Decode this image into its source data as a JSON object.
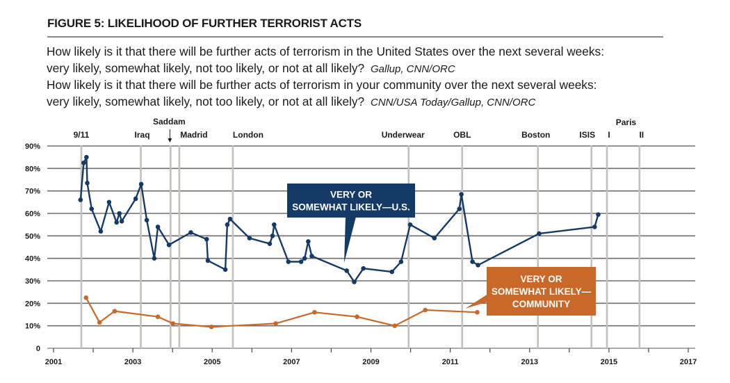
{
  "figure": {
    "title": "FIGURE 5: LIKELIHOOD OF FURTHER TERRORIST ACTS",
    "questions": [
      {
        "line1": "How likely is it that there will be further acts of terrorism in the United States over the next several weeks:",
        "line2": "very likely, somewhat likely, not too likely, or not at all likely?",
        "source": "Gallup, CNN/ORC"
      },
      {
        "line1": "How likely is it that there will be further acts of terrorism in your community over the next several weeks:",
        "line2": "very likely, somewhat likely, not too likely, or not at all likely?",
        "source": "CNN/USA Today/Gallup, CNN/ORC"
      }
    ]
  },
  "chart_data": {
    "type": "line",
    "title": "FIGURE 5: LIKELIHOOD OF FURTHER TERRORIST ACTS",
    "xlabel": "",
    "ylabel": "",
    "xlim": [
      2001,
      2017
    ],
    "ylim": [
      0,
      90
    ],
    "x_ticks": [
      2001,
      2002,
      2003,
      2004,
      2005,
      2006,
      2007,
      2008,
      2009,
      2010,
      2011,
      2012,
      2013,
      2014,
      2015,
      2016,
      2017
    ],
    "x_tick_labels": [
      "2001",
      "",
      "2003",
      "",
      "2005",
      "",
      "2007",
      "",
      "2009",
      "",
      "2011",
      "",
      "2013",
      "",
      "2015",
      "",
      "2017"
    ],
    "y_ticks": [
      0,
      10,
      20,
      30,
      40,
      50,
      60,
      70,
      80,
      90
    ],
    "y_tick_labels": [
      "0",
      "10%",
      "20%",
      "30%",
      "40%",
      "50%",
      "60%",
      "70%",
      "80%",
      "90%"
    ],
    "grid": "horizontal",
    "events": [
      {
        "label": "9/11",
        "x": 2001.7
      },
      {
        "label": "Iraq",
        "x": 2003.2
      },
      {
        "label": "Saddam",
        "x": 2003.95,
        "arrow": true
      },
      {
        "label": "Madrid",
        "x": 2004.17
      },
      {
        "label": "London",
        "x": 2005.52
      },
      {
        "label": "Underwear",
        "x": 2009.95
      },
      {
        "label": "OBL",
        "x": 2011.3
      },
      {
        "label": "Boston",
        "x": 2013.21
      },
      {
        "label": "ISIS",
        "x": 2014.56
      },
      {
        "label": "I",
        "x": 2014.95,
        "group": "Paris"
      },
      {
        "label": "II",
        "x": 2015.77,
        "group": "Paris"
      }
    ],
    "event_group_labels": [
      {
        "label": "Paris",
        "x": 2015.36
      }
    ],
    "series": [
      {
        "name": "VERY OR SOMEWHAT LIKELY—U.S.",
        "label_lines": [
          "VERY OR",
          "SOMEWHAT LIKELY—U.S."
        ],
        "color": "#163a66",
        "points": [
          [
            2001.68,
            66
          ],
          [
            2001.76,
            82.5
          ],
          [
            2001.83,
            85
          ],
          [
            2001.85,
            73.5
          ],
          [
            2001.96,
            62
          ],
          [
            2002.19,
            52
          ],
          [
            2002.4,
            65
          ],
          [
            2002.59,
            56
          ],
          [
            2002.66,
            60
          ],
          [
            2002.72,
            56.5
          ],
          [
            2003.07,
            66.5
          ],
          [
            2003.21,
            73
          ],
          [
            2003.35,
            57
          ],
          [
            2003.54,
            40
          ],
          [
            2003.63,
            54
          ],
          [
            2003.91,
            46
          ],
          [
            2004.46,
            51.5
          ],
          [
            2004.86,
            48.5
          ],
          [
            2004.89,
            39
          ],
          [
            2005.33,
            35
          ],
          [
            2005.38,
            55
          ],
          [
            2005.45,
            57.5
          ],
          [
            2005.94,
            49
          ],
          [
            2006.45,
            46.5
          ],
          [
            2006.52,
            50
          ],
          [
            2006.56,
            55
          ],
          [
            2006.92,
            38.5
          ],
          [
            2007.24,
            38.5
          ],
          [
            2007.33,
            40
          ],
          [
            2007.42,
            47.5
          ],
          [
            2007.51,
            41
          ],
          [
            2008.39,
            34.5
          ],
          [
            2008.58,
            29.5
          ],
          [
            2008.81,
            35.5
          ],
          [
            2009.53,
            34
          ],
          [
            2009.76,
            38.5
          ],
          [
            2009.99,
            55
          ],
          [
            2010.6,
            49
          ],
          [
            2011.23,
            62
          ],
          [
            2011.28,
            68.5
          ],
          [
            2011.56,
            38.5
          ],
          [
            2011.7,
            37
          ],
          [
            2013.24,
            51
          ],
          [
            2014.64,
            54
          ],
          [
            2014.73,
            59.5
          ]
        ]
      },
      {
        "name": "VERY OR SOMEWHAT LIKELY—COMMUNITY",
        "label_lines": [
          "VERY OR",
          "SOMEWHAT LIKELY—",
          "COMMUNITY"
        ],
        "color": "#c8692a",
        "points": [
          [
            2001.82,
            22.5
          ],
          [
            2002.16,
            11.5
          ],
          [
            2002.54,
            16.5
          ],
          [
            2003.63,
            14
          ],
          [
            2004.01,
            11
          ],
          [
            2004.98,
            9.5
          ],
          [
            2006.6,
            11
          ],
          [
            2007.58,
            16
          ],
          [
            2008.65,
            14
          ],
          [
            2009.6,
            10
          ],
          [
            2010.37,
            17
          ],
          [
            2011.68,
            16
          ]
        ]
      }
    ]
  },
  "colors": {
    "us_series": "#163a66",
    "community_series": "#c8692a",
    "gridline": "#6e6e6e",
    "event_line": "#c4c0bd"
  }
}
